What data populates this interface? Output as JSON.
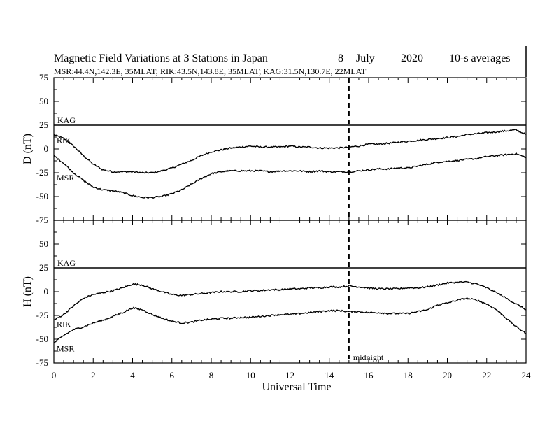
{
  "header": {
    "title": "Magnetic Field Variations at 3 Stations in Japan",
    "day": "8",
    "month": "July",
    "year": "2020",
    "averaging": "10-s averages",
    "stations_line": "MSR:44.4N,142.3E, 35MLAT;  RIK:43.5N,143.8E, 35MLAT;  KAG:31.5N,130.7E, 22MLAT"
  },
  "chart_data": [
    {
      "type": "line",
      "panel": "D",
      "ylabel": "D (nT)",
      "xlabel": "",
      "ylim": [
        -75,
        75
      ],
      "yticks": [
        75,
        50,
        25,
        0,
        -25,
        -50,
        -75
      ],
      "xlim": [
        0,
        24
      ],
      "series": [
        {
          "name": "KAG",
          "x": [
            0,
            24
          ],
          "y": [
            25,
            25
          ]
        },
        {
          "name": "RIK",
          "x": [
            0,
            0.5,
            1,
            1.5,
            2,
            2.5,
            3,
            3.5,
            4,
            4.5,
            5,
            5.5,
            6,
            6.5,
            7,
            7.5,
            8,
            8.5,
            9,
            9.5,
            10,
            10.5,
            11,
            11.5,
            12,
            12.5,
            13,
            13.5,
            14,
            14.5,
            15,
            15.5,
            16,
            16.5,
            17,
            17.5,
            18,
            18.5,
            19,
            19.5,
            20,
            20.5,
            21,
            21.5,
            22,
            22.5,
            23,
            23.5,
            24
          ],
          "y": [
            15,
            11,
            3,
            -7,
            -16,
            -22,
            -24,
            -24,
            -24,
            -25,
            -25,
            -23,
            -20,
            -16,
            -12,
            -7,
            -3,
            -1,
            1,
            2,
            3,
            2,
            2,
            2,
            3,
            2,
            2,
            1,
            1,
            1,
            2,
            3,
            5,
            5,
            6,
            7,
            8,
            9,
            10,
            11,
            12,
            13,
            15,
            16,
            17,
            18,
            19,
            20,
            15
          ]
        },
        {
          "name": "MSR",
          "x": [
            0,
            0.5,
            1,
            1.5,
            2,
            2.5,
            3,
            3.5,
            4,
            4.5,
            5,
            5.5,
            6,
            6.5,
            7,
            7.5,
            8,
            8.5,
            9,
            9.5,
            10,
            10.5,
            11,
            11.5,
            12,
            12.5,
            13,
            13.5,
            14,
            14.5,
            15,
            15.5,
            16,
            16.5,
            17,
            17.5,
            18,
            18.5,
            19,
            19.5,
            20,
            20.5,
            21,
            21.5,
            22,
            22.5,
            23,
            23.5,
            24
          ],
          "y": [
            -7,
            -15,
            -25,
            -33,
            -40,
            -43,
            -44,
            -46,
            -49,
            -51,
            -51,
            -50,
            -47,
            -43,
            -37,
            -31,
            -26,
            -24,
            -23,
            -23,
            -23,
            -23,
            -24,
            -23,
            -23,
            -23,
            -24,
            -23,
            -24,
            -24,
            -24,
            -23,
            -22,
            -21,
            -21,
            -20,
            -20,
            -18,
            -16,
            -14,
            -13,
            -12,
            -11,
            -10,
            -8,
            -7,
            -6,
            -5,
            -9
          ]
        }
      ]
    },
    {
      "type": "line",
      "panel": "H",
      "ylabel": "H (nT)",
      "xlabel": "Universal Time",
      "ylim": [
        -75,
        75
      ],
      "yticks": [
        75,
        50,
        25,
        0,
        -25,
        -50,
        -75
      ],
      "xlim": [
        0,
        24
      ],
      "xticks": [
        0,
        2,
        4,
        6,
        8,
        10,
        12,
        14,
        16,
        18,
        20,
        22,
        24
      ],
      "series": [
        {
          "name": "KAG",
          "x": [
            0,
            24
          ],
          "y": [
            25,
            25
          ]
        },
        {
          "name": "RIK",
          "x": [
            0,
            0.5,
            1,
            1.5,
            2,
            2.5,
            3,
            3.5,
            4,
            4.5,
            5,
            5.5,
            6,
            6.5,
            7,
            7.5,
            8,
            8.5,
            9,
            9.5,
            10,
            10.5,
            11,
            11.5,
            12,
            12.5,
            13,
            13.5,
            14,
            14.5,
            15,
            15.5,
            16,
            16.5,
            17,
            17.5,
            18,
            18.5,
            19,
            19.5,
            20,
            20.5,
            21,
            21.5,
            22,
            22.5,
            23,
            23.5,
            24
          ],
          "y": [
            -30,
            -24,
            -15,
            -7,
            -3,
            -1,
            1,
            4,
            8,
            7,
            3,
            0,
            -3,
            -4,
            -3,
            -2,
            -1,
            0,
            0,
            0,
            1,
            1,
            2,
            2,
            3,
            3,
            4,
            4,
            5,
            5,
            6,
            5,
            4,
            3,
            3,
            3,
            4,
            4,
            5,
            7,
            9,
            10,
            10,
            8,
            4,
            -1,
            -7,
            -13,
            -19
          ]
        },
        {
          "name": "MSR",
          "x": [
            0,
            0.5,
            1,
            1.5,
            2,
            2.5,
            3,
            3.5,
            4,
            4.5,
            5,
            5.5,
            6,
            6.5,
            7,
            7.5,
            8,
            8.5,
            9,
            9.5,
            10,
            10.5,
            11,
            11.5,
            12,
            12.5,
            13,
            13.5,
            14,
            14.5,
            15,
            15.5,
            16,
            16.5,
            17,
            17.5,
            18,
            18.5,
            19,
            19.5,
            20,
            20.5,
            21,
            21.5,
            22,
            22.5,
            23,
            23.5,
            24
          ],
          "y": [
            -54,
            -46,
            -40,
            -37,
            -33,
            -30,
            -26,
            -22,
            -17,
            -19,
            -24,
            -28,
            -31,
            -33,
            -32,
            -30,
            -29,
            -28,
            -28,
            -27,
            -27,
            -26,
            -25,
            -24,
            -24,
            -23,
            -22,
            -21,
            -20,
            -20,
            -21,
            -21,
            -22,
            -22,
            -23,
            -23,
            -23,
            -21,
            -19,
            -14,
            -12,
            -9,
            -7,
            -9,
            -13,
            -19,
            -28,
            -37,
            -44
          ]
        }
      ]
    }
  ],
  "x_axis_title": "Universal Time",
  "marker": {
    "x": 15,
    "label": "midnight"
  }
}
